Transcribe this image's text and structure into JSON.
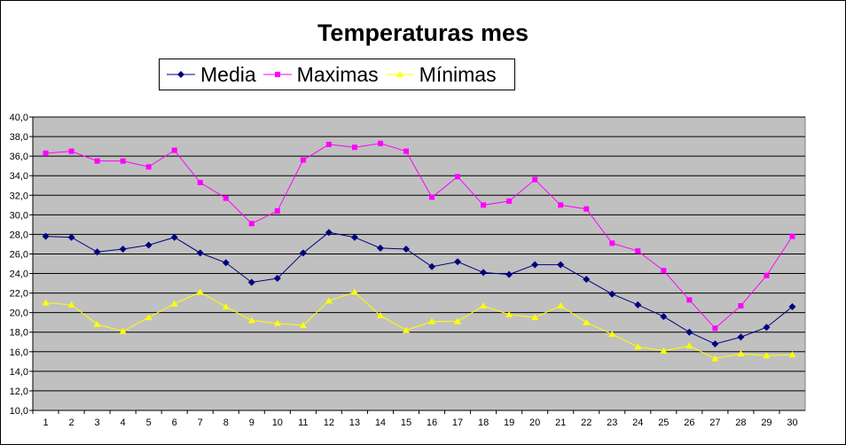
{
  "chart_data": {
    "type": "line",
    "title": "Temperaturas mes",
    "xlabel": "",
    "ylabel": "",
    "ylim": [
      10,
      40
    ],
    "ytick_step": 2,
    "grid": true,
    "legend_position": "top",
    "plot_background": "#c0c0c0",
    "categories": [
      "1",
      "2",
      "3",
      "4",
      "5",
      "6",
      "7",
      "8",
      "9",
      "10",
      "11",
      "12",
      "13",
      "14",
      "15",
      "16",
      "17",
      "18",
      "19",
      "20",
      "21",
      "22",
      "23",
      "24",
      "25",
      "26",
      "27",
      "28",
      "29",
      "30"
    ],
    "series": [
      {
        "name": "Media",
        "color": "#000080",
        "marker": "diamond",
        "values": [
          27.8,
          27.7,
          26.2,
          26.5,
          26.9,
          27.7,
          26.1,
          25.1,
          23.1,
          23.5,
          26.1,
          28.2,
          27.7,
          26.6,
          26.5,
          24.7,
          25.2,
          24.1,
          23.9,
          24.9,
          24.9,
          23.4,
          21.9,
          20.8,
          19.6,
          18.0,
          16.8,
          17.5,
          18.5,
          20.6
        ]
      },
      {
        "name": "Maximas",
        "color": "#ff00ff",
        "marker": "square",
        "values": [
          36.3,
          36.5,
          35.5,
          35.5,
          34.9,
          36.6,
          33.3,
          31.7,
          29.1,
          30.4,
          35.6,
          37.2,
          36.9,
          37.3,
          36.5,
          31.8,
          33.9,
          31.0,
          31.4,
          33.6,
          31.0,
          30.6,
          27.1,
          26.3,
          24.3,
          21.3,
          18.4,
          20.7,
          23.8,
          27.8
        ]
      },
      {
        "name": "Mínimas",
        "color": "#ffff00",
        "marker": "triangle",
        "values": [
          21.0,
          20.8,
          18.8,
          18.1,
          19.5,
          20.9,
          22.1,
          20.6,
          19.2,
          18.9,
          18.7,
          21.2,
          22.1,
          19.7,
          18.2,
          19.1,
          19.1,
          20.7,
          19.8,
          19.5,
          20.7,
          19.0,
          17.8,
          16.5,
          16.1,
          16.6,
          15.3,
          15.8,
          15.6,
          15.7
        ]
      }
    ]
  }
}
